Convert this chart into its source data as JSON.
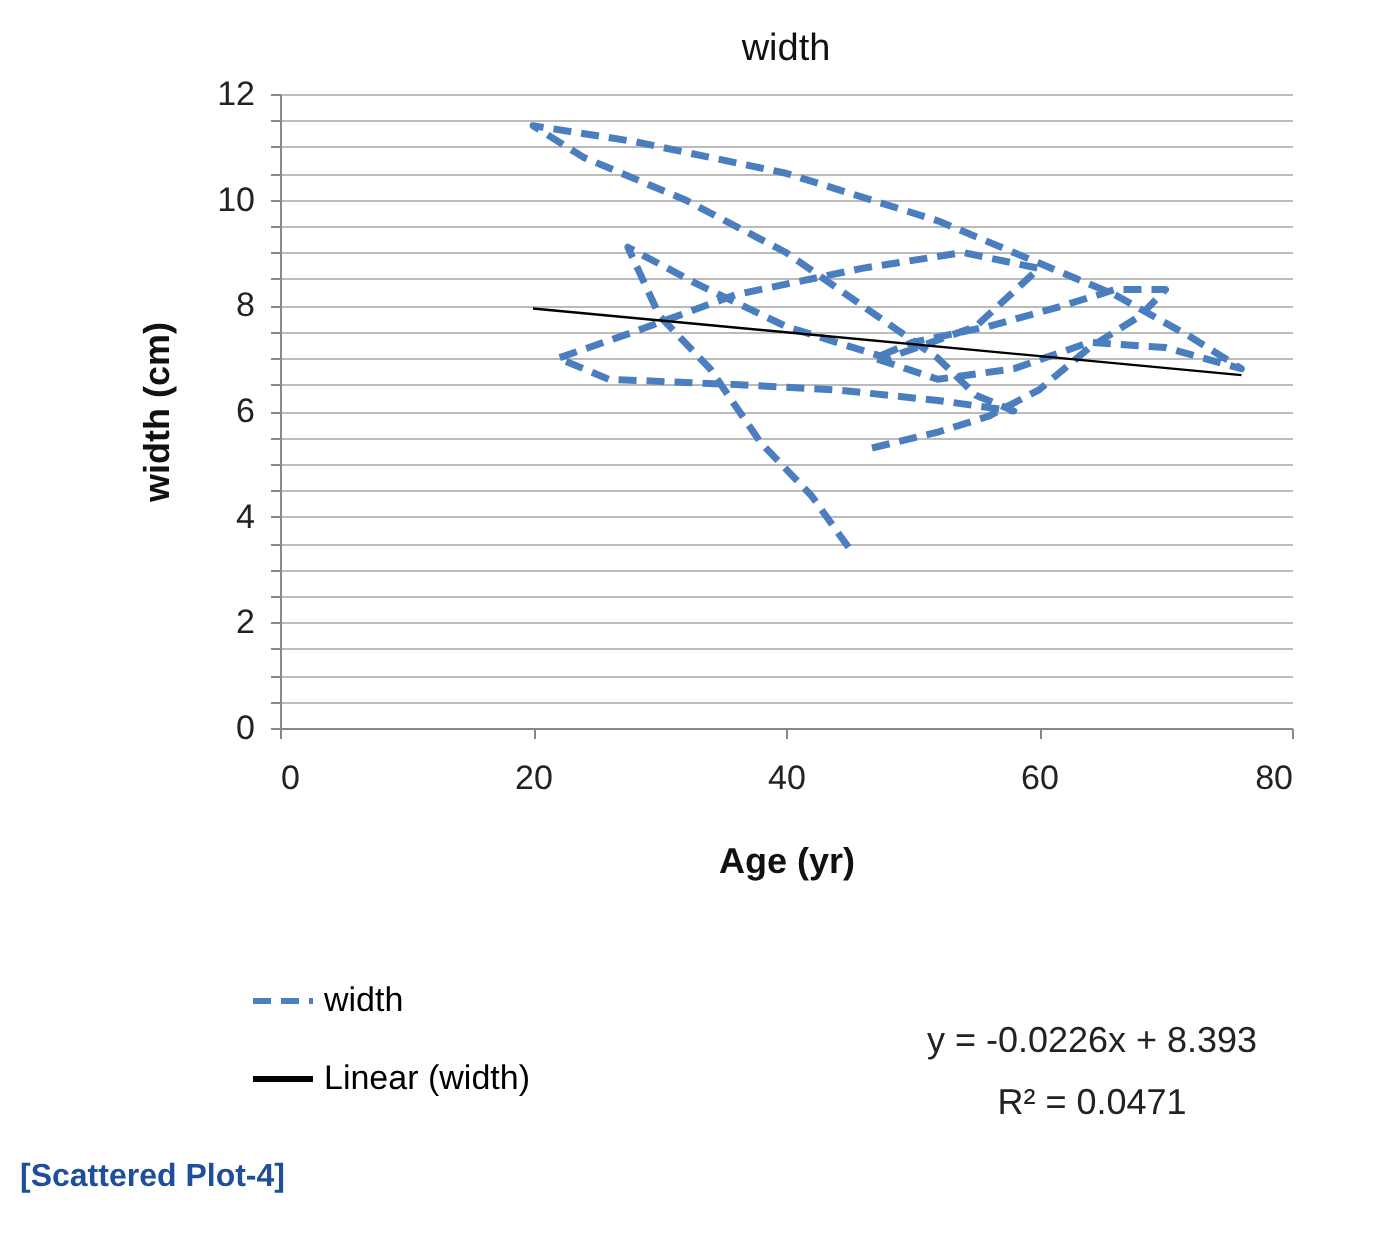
{
  "chart_data": {
    "type": "line",
    "title": "width",
    "xlabel": "Age (yr)",
    "ylabel": "width (cm)",
    "xlim": [
      0,
      80
    ],
    "xticks": [
      0,
      20,
      40,
      60,
      80
    ],
    "ylim": [
      0,
      12
    ],
    "yticks": [
      0,
      {
        "value": 0.5,
        "label": null
      },
      {
        "value": 1,
        "label": null
      },
      {
        "value": 1.5,
        "label": null
      },
      2,
      {
        "value": 2.5,
        "label": null
      },
      {
        "value": 3,
        "label": null
      },
      {
        "value": 3.5,
        "label": null
      },
      4,
      {
        "value": 4.5,
        "label": null
      },
      {
        "value": 5,
        "label": null
      },
      {
        "value": 5.5,
        "label": null
      },
      6,
      {
        "value": 6.5,
        "label": null
      },
      {
        "value": 7,
        "label": null
      },
      {
        "value": 7.5,
        "label": null
      },
      8,
      {
        "value": 8.5,
        "label": null
      },
      {
        "value": 9,
        "label": null
      },
      {
        "value": 9.5,
        "label": null
      },
      10,
      {
        "value": 10.5,
        "label": null
      },
      {
        "value": 11,
        "label": null
      },
      {
        "value": 11.5,
        "label": null
      },
      12
    ],
    "grid": "y",
    "legend": "bottom left",
    "marker": "none",
    "series": [
      {
        "name": "width",
        "color": "#4a7ebf",
        "line_style": "dashed",
        "x": [
          46.8,
          52,
          56,
          60,
          64,
          68,
          70,
          66,
          62,
          56,
          50,
          47,
          52,
          58,
          64,
          70,
          76,
          72,
          66,
          60,
          52,
          40,
          28,
          20,
          24,
          32,
          40,
          46,
          52,
          55,
          58,
          52,
          44,
          36,
          26,
          22,
          28,
          36,
          46,
          54,
          60,
          55,
          48,
          40,
          33,
          27.5,
          30,
          34,
          38,
          42,
          45
        ],
        "values": [
          5.3,
          5.6,
          5.9,
          6.4,
          7.2,
          7.8,
          8.3,
          8.3,
          8.0,
          7.6,
          7.3,
          7.0,
          6.6,
          6.8,
          7.3,
          7.2,
          6.8,
          7.4,
          8.2,
          8.8,
          9.6,
          10.5,
          11.1,
          11.4,
          10.8,
          10.0,
          9.0,
          8.0,
          7.0,
          6.3,
          6.0,
          6.2,
          6.4,
          6.5,
          6.6,
          7.0,
          7.5,
          8.2,
          8.7,
          9.0,
          8.7,
          7.6,
          7.0,
          7.6,
          8.4,
          9.1,
          7.8,
          6.8,
          5.4,
          4.4,
          3.4
        ]
      },
      {
        "name": "Linear (width)",
        "type": "line",
        "color": "#000000",
        "line_style": "solid",
        "x": [
          20,
          76
        ],
        "values": [
          7.94,
          6.68
        ]
      }
    ],
    "annotations": [
      "y = -0.0226x + 8.393",
      "R² = 0.0471",
      "[Scattered Plot-4]"
    ]
  }
}
